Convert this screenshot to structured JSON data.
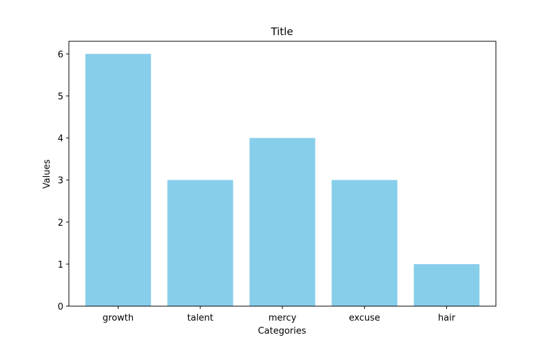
{
  "chart_data": {
    "type": "bar",
    "title": "Title",
    "xlabel": "Categories",
    "ylabel": "Values",
    "categories": [
      "growth",
      "talent",
      "mercy",
      "excuse",
      "hair"
    ],
    "values": [
      6,
      3,
      4,
      3,
      1
    ],
    "ylim": [
      0,
      6.3
    ],
    "yticks": [
      0,
      1,
      2,
      3,
      4,
      5,
      6
    ],
    "bar_color": "#87ceeb",
    "grid": false,
    "legend": "none"
  }
}
